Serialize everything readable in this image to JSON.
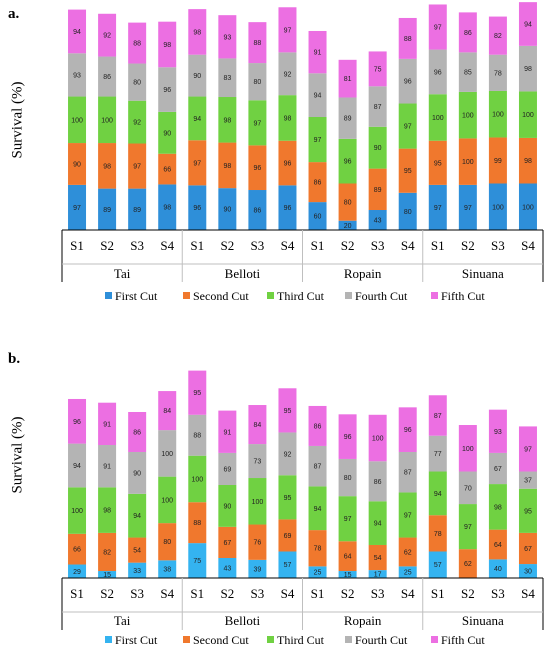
{
  "chart_data": [
    {
      "type": "bar",
      "stacked": true,
      "panel_label": "a.",
      "ylabel": "Survival (%)",
      "categories": [
        "S1",
        "S2",
        "S3",
        "S4",
        "S1",
        "S2",
        "S3",
        "S4",
        "S1",
        "S2",
        "S3",
        "S4",
        "S1",
        "S2",
        "S3",
        "S4"
      ],
      "groups": [
        "Tai",
        "Belloti",
        "Ropain",
        "Sinuana"
      ],
      "series": [
        {
          "name": "First Cut",
          "color": "#2e8fd9",
          "values": [
            97,
            89,
            89,
            98,
            96,
            90,
            86,
            96,
            60,
            20,
            43,
            80,
            97,
            97,
            100,
            100
          ]
        },
        {
          "name": "Second Cut",
          "color": "#f0782d",
          "values": [
            90,
            98,
            97,
            66,
            97,
            98,
            96,
            96,
            86,
            80,
            89,
            95,
            95,
            100,
            99,
            98
          ]
        },
        {
          "name": "Third Cut",
          "color": "#70d142",
          "values": [
            100,
            100,
            92,
            90,
            94,
            98,
            97,
            98,
            97,
            96,
            90,
            97,
            100,
            100,
            100,
            100
          ]
        },
        {
          "name": "Fourth Cut",
          "color": "#b4b4b4",
          "values": [
            93,
            86,
            80,
            96,
            90,
            83,
            80,
            92,
            94,
            89,
            87,
            96,
            96,
            85,
            78,
            98
          ]
        },
        {
          "name": "Fifth Cut",
          "color": "#ec6fe2",
          "values": [
            94,
            92,
            88,
            98,
            98,
            93,
            88,
            97,
            91,
            81,
            75,
            88,
            97,
            86,
            82,
            94
          ]
        }
      ],
      "legend_position": "bottom"
    },
    {
      "type": "bar",
      "stacked": true,
      "panel_label": "b.",
      "ylabel": "Survival (%)",
      "categories": [
        "S1",
        "S2",
        "S3",
        "S4",
        "S1",
        "S2",
        "S3",
        "S4",
        "S1",
        "S2",
        "S3",
        "S4",
        "S1",
        "S2",
        "S3",
        "S4"
      ],
      "groups": [
        "Tai",
        "Belloti",
        "Ropain",
        "Sinuana"
      ],
      "series": [
        {
          "name": "First Cut",
          "color": "#34b3f0",
          "values": [
            29,
            15,
            33,
            38,
            75,
            43,
            39,
            57,
            25,
            15,
            17,
            25,
            57,
            0,
            40,
            30
          ]
        },
        {
          "name": "Second Cut",
          "color": "#f0782d",
          "values": [
            66,
            82,
            54,
            80,
            88,
            67,
            76,
            69,
            78,
            64,
            54,
            62,
            78,
            62,
            64,
            67
          ]
        },
        {
          "name": "Third Cut",
          "color": "#70d142",
          "values": [
            100,
            98,
            94,
            100,
            100,
            90,
            100,
            95,
            94,
            97,
            94,
            97,
            94,
            97,
            98,
            95
          ]
        },
        {
          "name": "Fourth Cut",
          "color": "#b4b4b4",
          "values": [
            94,
            91,
            90,
            100,
            88,
            69,
            73,
            92,
            87,
            80,
            86,
            87,
            77,
            70,
            67,
            37
          ]
        },
        {
          "name": "Fifth Cut",
          "color": "#ec6fe2",
          "values": [
            96,
            91,
            86,
            84,
            95,
            91,
            84,
            95,
            86,
            96,
            100,
            96,
            87,
            100,
            93,
            97
          ]
        }
      ],
      "legend_position": "bottom"
    }
  ]
}
